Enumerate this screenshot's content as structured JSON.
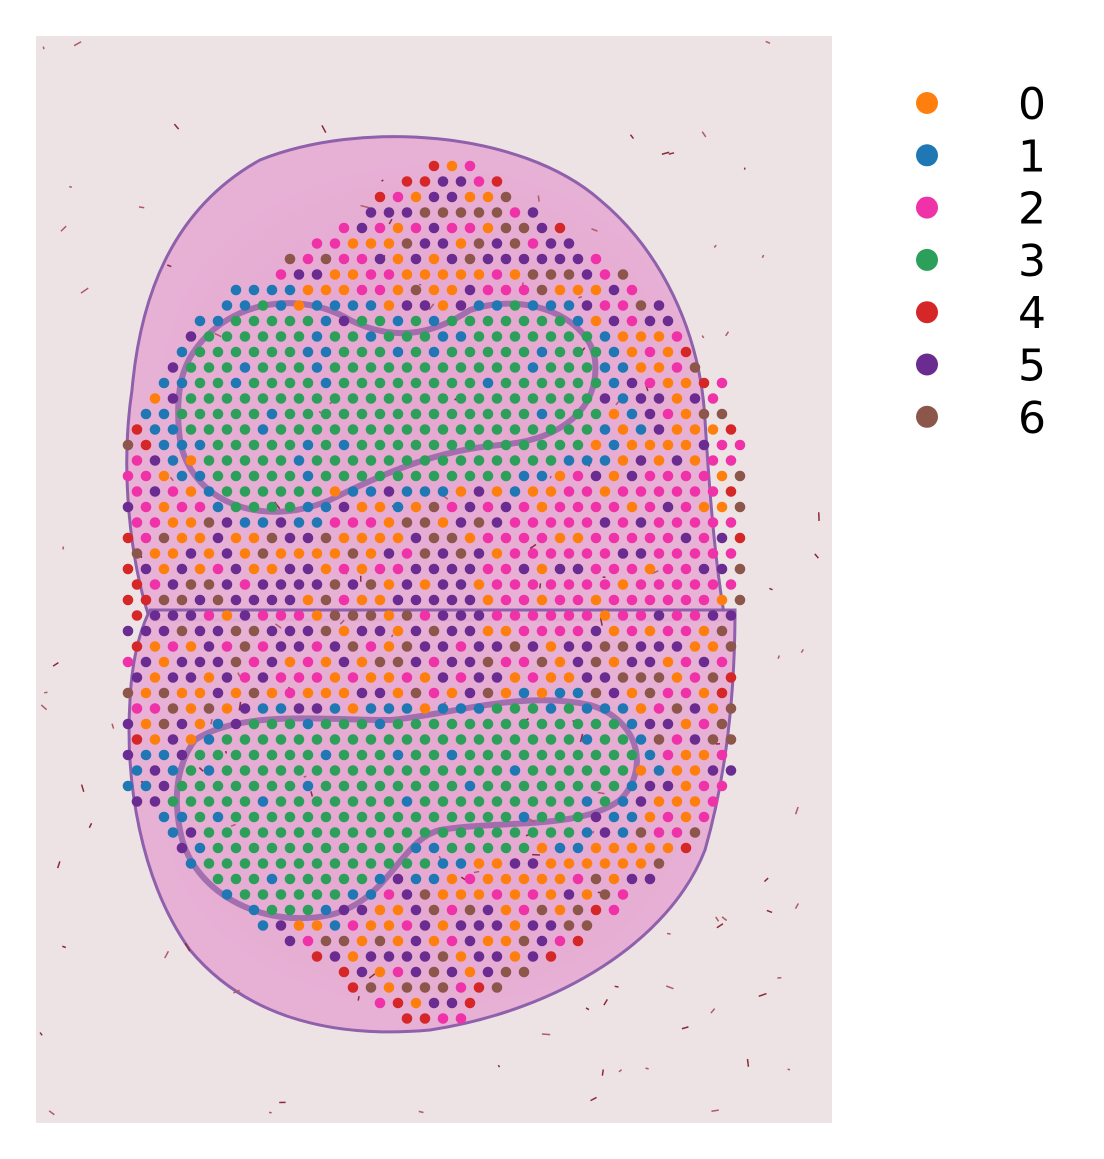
{
  "chart_data": {
    "type": "scatter",
    "title": "",
    "xlabel": "",
    "ylabel": "",
    "grid": false,
    "legend": {
      "placement": "right",
      "entries": [
        {
          "label": "0",
          "color": "#ff7f0e"
        },
        {
          "label": "1",
          "color": "#1f77b4"
        },
        {
          "label": "2",
          "color": "#f032a8"
        },
        {
          "label": "3",
          "color": "#2ca05a"
        },
        {
          "label": "4",
          "color": "#d62728"
        },
        {
          "label": "5",
          "color": "#6a2c91"
        },
        {
          "label": "6",
          "color": "#8c564b"
        }
      ]
    },
    "background": {
      "description_color": "#ede2e2",
      "tissue_color": "#e9a9d2",
      "tissue_edge_color": "#6b3c8f"
    }
  }
}
